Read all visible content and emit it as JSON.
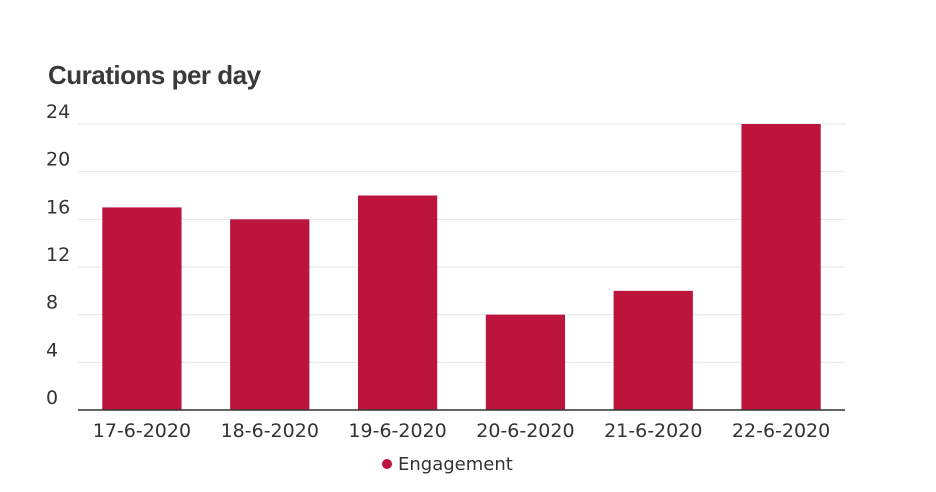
{
  "chart_data": {
    "type": "bar",
    "title": "Curations per day",
    "xlabel": "",
    "ylabel": "",
    "categories": [
      "17-6-2020",
      "18-6-2020",
      "19-6-2020",
      "20-6-2020",
      "21-6-2020",
      "22-6-2020"
    ],
    "series": [
      {
        "name": "Engagement",
        "values": [
          17,
          16,
          18,
          8,
          10,
          24
        ],
        "color": "#bc143c"
      }
    ],
    "ylim": [
      0,
      24
    ],
    "yticks": [
      0,
      4,
      8,
      12,
      16,
      20,
      24
    ],
    "grid": true,
    "legend": "bottom-center"
  }
}
